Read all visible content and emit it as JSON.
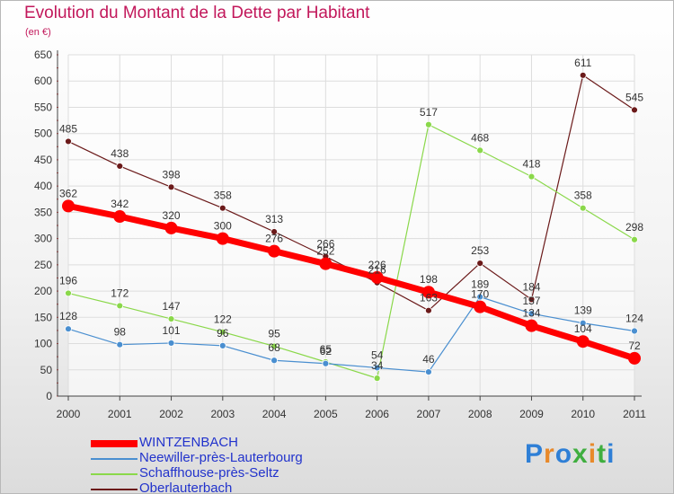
{
  "chart_data": {
    "type": "line",
    "title": "Evolution du Montant de la Dette par Habitant",
    "unit": "(en €)",
    "categories": [
      "2000",
      "2001",
      "2002",
      "2003",
      "2004",
      "2005",
      "2006",
      "2007",
      "2008",
      "2009",
      "2010",
      "2011"
    ],
    "ylim": [
      0,
      650
    ],
    "yticks": [
      0,
      50,
      100,
      150,
      200,
      250,
      300,
      350,
      400,
      450,
      500,
      550,
      600,
      650
    ],
    "grid": true,
    "legend_position": "bottom-left",
    "series": [
      {
        "name": "WINTZENBACH",
        "color": "#ff0000",
        "emphasis": true,
        "values": [
          362,
          342,
          320,
          300,
          276,
          252,
          226,
          198,
          170,
          134,
          104,
          72
        ]
      },
      {
        "name": "Neewiller-près-Lauterbourg",
        "color": "#4a8fd0",
        "values": [
          128,
          98,
          101,
          96,
          68,
          62,
          54,
          46,
          189,
          157,
          139,
          124
        ]
      },
      {
        "name": "Schaffhouse-près-Seltz",
        "color": "#8ad84a",
        "values": [
          196,
          172,
          147,
          122,
          95,
          65,
          34,
          517,
          468,
          418,
          358,
          298
        ]
      },
      {
        "name": "Oberlauterbach",
        "color": "#6b1a1a",
        "values": [
          485,
          438,
          398,
          358,
          313,
          266,
          216,
          163,
          253,
          184,
          611,
          545
        ]
      }
    ]
  },
  "brand": {
    "letters": [
      "P",
      "r",
      "o",
      "x",
      "i",
      "t",
      "i"
    ],
    "colors": [
      "#2e7fd6",
      "#e8892a",
      "#2e7fd6",
      "#3fae3f",
      "#e8892a",
      "#3fae3f",
      "#2e7fd6"
    ]
  },
  "colors": {
    "title": "#c2185b",
    "axis": "#444444",
    "grid": "#dddddd",
    "label": "#333333"
  }
}
